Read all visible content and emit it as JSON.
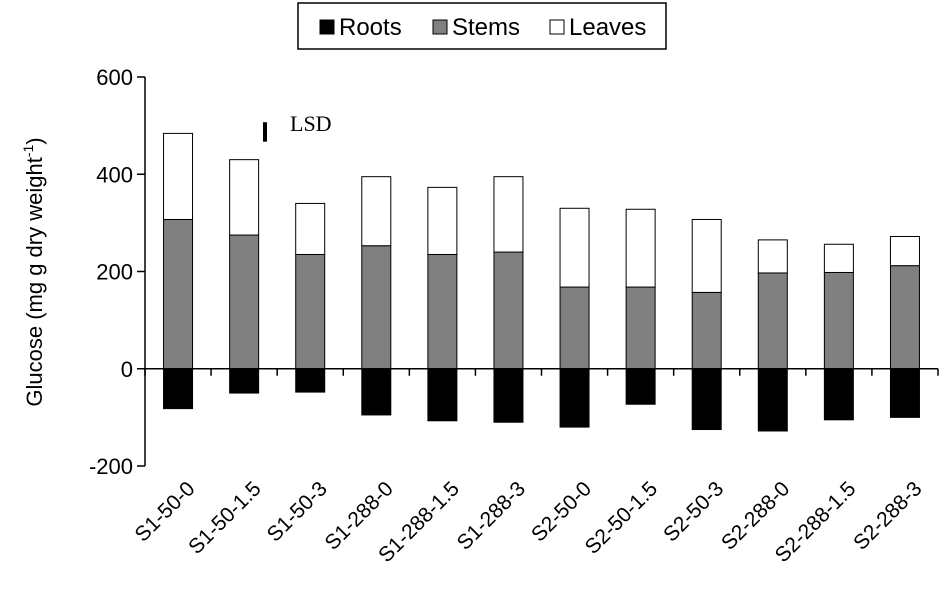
{
  "chart_data": {
    "type": "bar",
    "stacked": true,
    "categories": [
      "S1-50-0",
      "S1-50-1.5",
      "S1-50-3",
      "S1-288-0",
      "S1-288-1.5",
      "S1-288-3",
      "S2-50-0",
      "S2-50-1.5",
      "S2-50-3",
      "S2-288-0",
      "S2-288-1.5",
      "S2-288-3"
    ],
    "series": [
      {
        "name": "Roots",
        "color": "#000000",
        "values": [
          -82,
          -50,
          -48,
          -95,
          -107,
          -110,
          -120,
          -73,
          -125,
          -128,
          -105,
          -100
        ]
      },
      {
        "name": "Stems",
        "color": "#808080",
        "values": [
          307,
          275,
          235,
          253,
          235,
          240,
          168,
          168,
          157,
          197,
          198,
          212
        ]
      },
      {
        "name": "Leaves",
        "color": "#ffffff",
        "values": [
          177,
          155,
          105,
          142,
          138,
          155,
          162,
          160,
          150,
          68,
          58,
          60
        ]
      }
    ],
    "title": "",
    "xlabel": "",
    "ylabel": "Glucose (mg g dry weight",
    "ylabel_superscript": "-1",
    "ylabel_suffix": ")",
    "ylim": [
      -200,
      600
    ],
    "yticks": [
      "-200",
      "0",
      "200",
      "400",
      "600"
    ],
    "legend_position": "top",
    "grid": false,
    "annotation": {
      "text": "LSD",
      "bar_length": 40,
      "bar_y_center": 487
    }
  }
}
